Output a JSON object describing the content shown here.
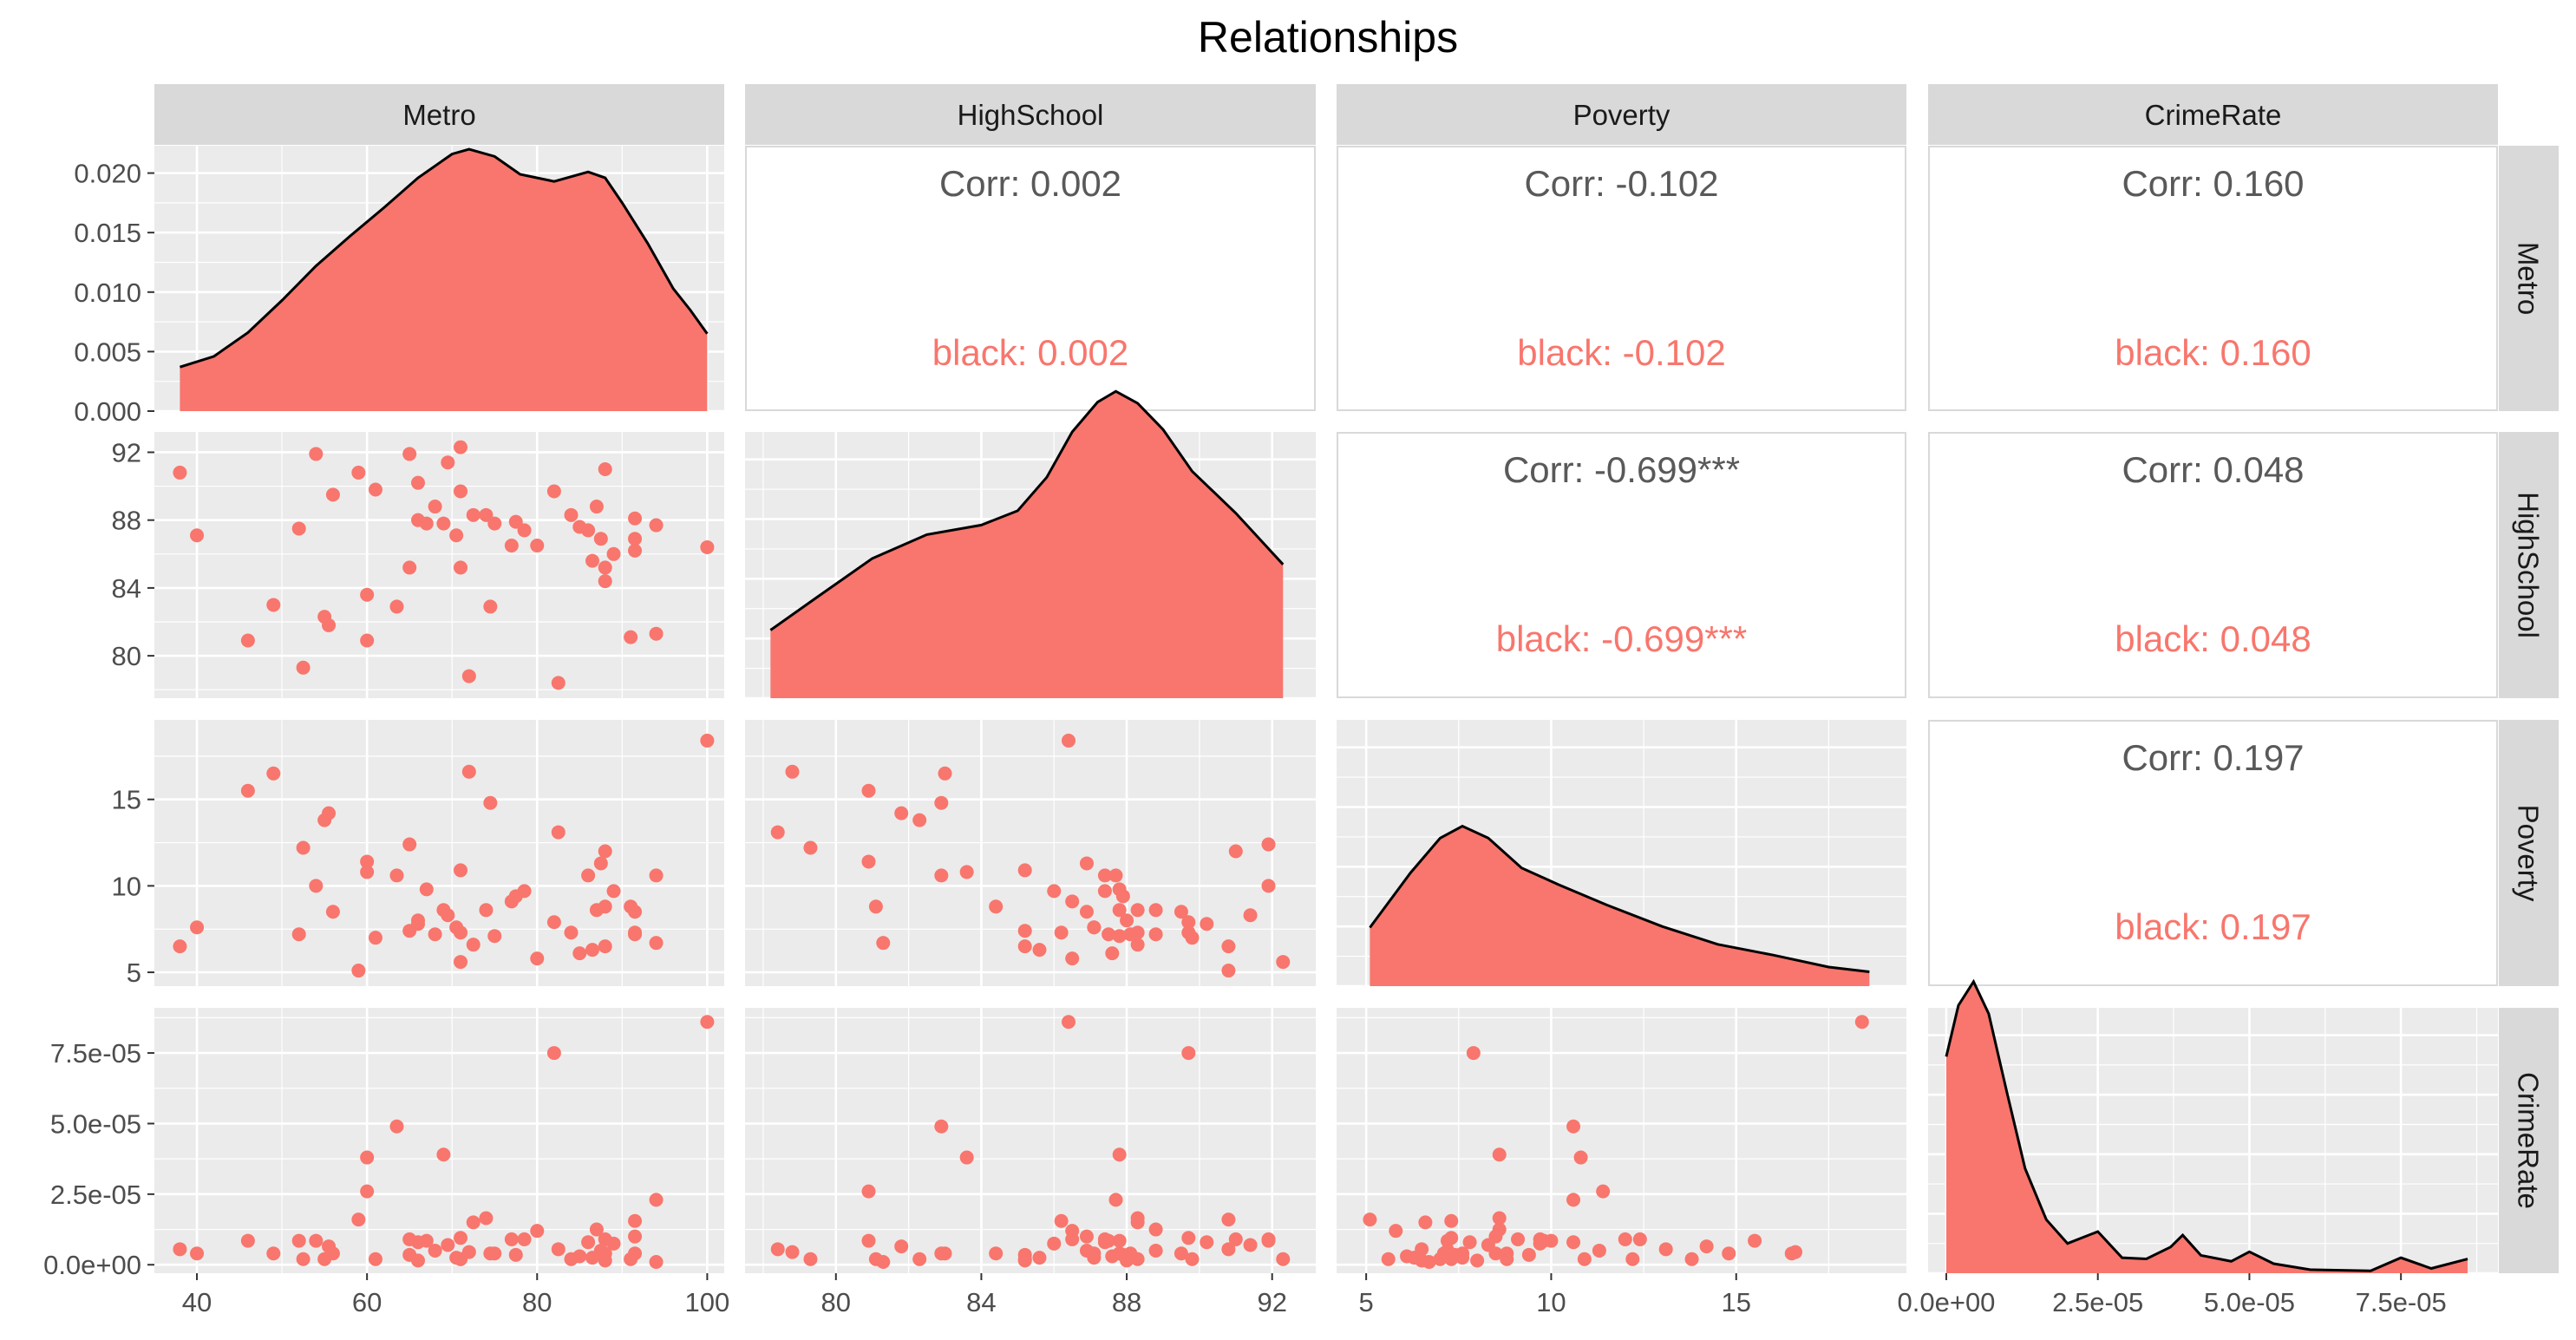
{
  "title": "Relationships",
  "variables": [
    "Metro",
    "HighSchool",
    "Poverty",
    "CrimeRate"
  ],
  "colors": {
    "fill": "#F8766D",
    "panel_bg": "#EBEBEB",
    "strip_bg": "#D9D9D9",
    "grid": "#FFFFFF",
    "corr_text": "#595959",
    "group_text": "#F8766D"
  },
  "chart_data": {
    "type": "scatter",
    "layout": "pairs-matrix",
    "grid": true,
    "ranges": {
      "Metro": [
        35,
        102
      ],
      "HighSchool": [
        77.5,
        93.2
      ],
      "Poverty": [
        4.2,
        19.6
      ],
      "CrimeRate": [
        -3e-06,
        9.1e-05
      ]
    },
    "density_yrange": [
      0,
      0.0223
    ],
    "ticks": {
      "Metro": [
        40,
        60,
        80,
        100
      ],
      "HighSchool": [
        80,
        84,
        88,
        92
      ],
      "Poverty": [
        5,
        10,
        15
      ],
      "CrimeRate": [
        0,
        2.5e-05,
        5e-05,
        7.5e-05
      ]
    },
    "tick_labels": {
      "Metro": [
        "40",
        "60",
        "80",
        "100"
      ],
      "HighSchool": [
        "80",
        "84",
        "88",
        "92"
      ],
      "Poverty": [
        "5",
        "10",
        "15"
      ],
      "CrimeRate": [
        "0.0e+00",
        "2.5e-05",
        "5.0e-05",
        "7.5e-05"
      ]
    },
    "density_ticks": [
      0.0,
      0.005,
      0.01,
      0.015,
      0.02
    ],
    "density_tick_labels": [
      "0.000",
      "0.005",
      "0.010",
      "0.015",
      "0.020"
    ],
    "correlations": [
      {
        "row": "Metro",
        "col": "HighSchool",
        "corr_label": "Corr: 0.002",
        "group_label": "black: 0.002"
      },
      {
        "row": "Metro",
        "col": "Poverty",
        "corr_label": "Corr: -0.102",
        "group_label": "black: -0.102"
      },
      {
        "row": "Metro",
        "col": "CrimeRate",
        "corr_label": "Corr: 0.160",
        "group_label": "black: 0.160"
      },
      {
        "row": "HighSchool",
        "col": "Poverty",
        "corr_label": "Corr: -0.699***",
        "group_label": "black: -0.699***"
      },
      {
        "row": "HighSchool",
        "col": "CrimeRate",
        "corr_label": "Corr: 0.048",
        "group_label": "black: 0.048"
      },
      {
        "row": "Poverty",
        "col": "CrimeRate",
        "corr_label": "Corr: 0.197",
        "group_label": "black: 0.197"
      }
    ],
    "densities": {
      "Metro": [
        [
          38,
          0.0037
        ],
        [
          42,
          0.0046
        ],
        [
          46,
          0.0066
        ],
        [
          50,
          0.0093
        ],
        [
          54,
          0.0122
        ],
        [
          58,
          0.0147
        ],
        [
          62,
          0.0171
        ],
        [
          66,
          0.0196
        ],
        [
          70,
          0.0216
        ],
        [
          72,
          0.022
        ],
        [
          75,
          0.0214
        ],
        [
          78,
          0.0199
        ],
        [
          82,
          0.0193
        ],
        [
          86,
          0.0201
        ],
        [
          88,
          0.0196
        ],
        [
          90,
          0.0175
        ],
        [
          93,
          0.0141
        ],
        [
          96,
          0.0103
        ],
        [
          98,
          0.0085
        ],
        [
          100,
          0.0065
        ]
      ],
      "HighSchool": [
        [
          78.2,
          0.0057
        ],
        [
          79.5,
          0.0085
        ],
        [
          81,
          0.0117
        ],
        [
          82.5,
          0.0137
        ],
        [
          84,
          0.0145
        ],
        [
          85,
          0.0157
        ],
        [
          85.8,
          0.0185
        ],
        [
          86.5,
          0.0223
        ],
        [
          87.2,
          0.0248
        ],
        [
          87.7,
          0.0257
        ],
        [
          88.3,
          0.0247
        ],
        [
          89,
          0.0225
        ],
        [
          89.8,
          0.019
        ],
        [
          91,
          0.0155
        ],
        [
          92.3,
          0.0112
        ]
      ],
      "Poverty": [
        [
          5.1,
          0.0049
        ],
        [
          6.2,
          0.0095
        ],
        [
          7,
          0.0124
        ],
        [
          7.6,
          0.0134
        ],
        [
          8.3,
          0.0124
        ],
        [
          9.2,
          0.0099
        ],
        [
          10.2,
          0.0085
        ],
        [
          11.5,
          0.0068
        ],
        [
          13,
          0.005
        ],
        [
          14.5,
          0.0035
        ],
        [
          16,
          0.0026
        ],
        [
          17.5,
          0.0016
        ],
        [
          18.6,
          0.0012
        ]
      ],
      "CrimeRate": [
        [
          0,
          0.0182
        ],
        [
          2e-06,
          0.0225
        ],
        [
          4.5e-06,
          0.0245
        ],
        [
          7e-06,
          0.0218
        ],
        [
          1e-05,
          0.0152
        ],
        [
          1.3e-05,
          0.0088
        ],
        [
          1.65e-05,
          0.0045
        ],
        [
          2e-05,
          0.0025
        ],
        [
          2.5e-05,
          0.0035
        ],
        [
          2.9e-05,
          0.0013
        ],
        [
          3.3e-05,
          0.0012
        ],
        [
          3.7e-05,
          0.0022
        ],
        [
          3.9e-05,
          0.0032
        ],
        [
          4.2e-05,
          0.0015
        ],
        [
          4.7e-05,
          0.001
        ],
        [
          5e-05,
          0.0018
        ],
        [
          5.4e-05,
          0.0008
        ],
        [
          6e-05,
          0.0003
        ],
        [
          7e-05,
          0.0002
        ],
        [
          7.5e-05,
          0.0013
        ],
        [
          8e-05,
          0.0004
        ],
        [
          8.6e-05,
          0.0012
        ]
      ]
    },
    "points": [
      {
        "Metro": 38,
        "HighSchool": 90.8,
        "Poverty": 6.5,
        "CrimeRate": 5.5e-06
      },
      {
        "Metro": 40,
        "HighSchool": 87.1,
        "Poverty": 7.6,
        "CrimeRate": 4e-06
      },
      {
        "Metro": 46,
        "HighSchool": 80.9,
        "Poverty": 15.5,
        "CrimeRate": 8.5e-06
      },
      {
        "Metro": 49,
        "HighSchool": 83,
        "Poverty": 16.5,
        "CrimeRate": 4e-06
      },
      {
        "Metro": 52,
        "HighSchool": 87.5,
        "Poverty": 7.2,
        "CrimeRate": 8.5e-06
      },
      {
        "Metro": 52.5,
        "HighSchool": 79.3,
        "Poverty": 12.2,
        "CrimeRate": 2e-06
      },
      {
        "Metro": 54,
        "HighSchool": 91.9,
        "Poverty": 10,
        "CrimeRate": 8.5e-06
      },
      {
        "Metro": 55,
        "HighSchool": 82.3,
        "Poverty": 13.8,
        "CrimeRate": 2e-06
      },
      {
        "Metro": 55.5,
        "HighSchool": 81.8,
        "Poverty": 14.2,
        "CrimeRate": 6.5e-06
      },
      {
        "Metro": 56,
        "HighSchool": 89.5,
        "Poverty": 8.5,
        "CrimeRate": 4e-06
      },
      {
        "Metro": 59,
        "HighSchool": 90.8,
        "Poverty": 5.1,
        "CrimeRate": 1.6e-05
      },
      {
        "Metro": 60,
        "HighSchool": 83.6,
        "Poverty": 10.8,
        "CrimeRate": 3.8e-05
      },
      {
        "Metro": 60,
        "HighSchool": 80.9,
        "Poverty": 11.4,
        "CrimeRate": 2.6e-05
      },
      {
        "Metro": 61,
        "HighSchool": 89.8,
        "Poverty": 7,
        "CrimeRate": 2e-06
      },
      {
        "Metro": 63.5,
        "HighSchool": 82.9,
        "Poverty": 10.6,
        "CrimeRate": 4.9e-05
      },
      {
        "Metro": 65,
        "HighSchool": 91.9,
        "Poverty": 12.4,
        "CrimeRate": 9e-06
      },
      {
        "Metro": 65,
        "HighSchool": 85.2,
        "Poverty": 7.4,
        "CrimeRate": 3.5e-06
      },
      {
        "Metro": 66,
        "HighSchool": 90.2,
        "Poverty": 7.8,
        "CrimeRate": 8e-06
      },
      {
        "Metro": 66,
        "HighSchool": 88,
        "Poverty": 8,
        "CrimeRate": 1.5e-06
      },
      {
        "Metro": 67,
        "HighSchool": 87.8,
        "Poverty": 9.8,
        "CrimeRate": 8.5e-06
      },
      {
        "Metro": 68,
        "HighSchool": 88.8,
        "Poverty": 7.2,
        "CrimeRate": 5e-06
      },
      {
        "Metro": 69,
        "HighSchool": 87.8,
        "Poverty": 8.6,
        "CrimeRate": 3.9e-05
      },
      {
        "Metro": 69.5,
        "HighSchool": 91.4,
        "Poverty": 8.3,
        "CrimeRate": 7e-06
      },
      {
        "Metro": 70.5,
        "HighSchool": 87.1,
        "Poverty": 7.6,
        "CrimeRate": 2.5e-06
      },
      {
        "Metro": 71,
        "HighSchool": 92.3,
        "Poverty": 5.6,
        "CrimeRate": 2e-06
      },
      {
        "Metro": 71,
        "HighSchool": 89.7,
        "Poverty": 7.3,
        "CrimeRate": 9.5e-06
      },
      {
        "Metro": 71,
        "HighSchool": 85.2,
        "Poverty": 10.9,
        "CrimeRate": 2e-06
      },
      {
        "Metro": 72,
        "HighSchool": 78.8,
        "Poverty": 16.6,
        "CrimeRate": 4.5e-06
      },
      {
        "Metro": 72.5,
        "HighSchool": 88.3,
        "Poverty": 6.6,
        "CrimeRate": 1.5e-05
      },
      {
        "Metro": 74,
        "HighSchool": 88.3,
        "Poverty": 8.6,
        "CrimeRate": 1.65e-05
      },
      {
        "Metro": 74.5,
        "HighSchool": 82.9,
        "Poverty": 14.8,
        "CrimeRate": 4e-06
      },
      {
        "Metro": 75,
        "HighSchool": 87.8,
        "Poverty": 7.1,
        "CrimeRate": 4e-06
      },
      {
        "Metro": 77,
        "HighSchool": 86.5,
        "Poverty": 9.1,
        "CrimeRate": 9e-06
      },
      {
        "Metro": 77.5,
        "HighSchool": 87.9,
        "Poverty": 9.4,
        "CrimeRate": 3.5e-06
      },
      {
        "Metro": 78.5,
        "HighSchool": 87.4,
        "Poverty": 9.7,
        "CrimeRate": 9e-06
      },
      {
        "Metro": 80,
        "HighSchool": 86.5,
        "Poverty": 5.8,
        "CrimeRate": 1.2e-05
      },
      {
        "Metro": 82,
        "HighSchool": 89.7,
        "Poverty": 7.9,
        "CrimeRate": 7.5e-05
      },
      {
        "Metro": 82.5,
        "HighSchool": 78.4,
        "Poverty": 13.1,
        "CrimeRate": 5.5e-06
      },
      {
        "Metro": 84,
        "HighSchool": 88.3,
        "Poverty": 7.3,
        "CrimeRate": 2e-06
      },
      {
        "Metro": 85,
        "HighSchool": 87.6,
        "Poverty": 6.1,
        "CrimeRate": 3e-06
      },
      {
        "Metro": 86,
        "HighSchool": 87.4,
        "Poverty": 10.6,
        "CrimeRate": 8e-06
      },
      {
        "Metro": 86.5,
        "HighSchool": 85.6,
        "Poverty": 6.3,
        "CrimeRate": 2.5e-06
      },
      {
        "Metro": 87,
        "HighSchool": 88.8,
        "Poverty": 8.6,
        "CrimeRate": 1.25e-05
      },
      {
        "Metro": 87.5,
        "HighSchool": 86.9,
        "Poverty": 11.3,
        "CrimeRate": 5e-06
      },
      {
        "Metro": 88,
        "HighSchool": 85.2,
        "Poverty": 6.5,
        "CrimeRate": 1.5e-06
      },
      {
        "Metro": 88,
        "HighSchool": 84.4,
        "Poverty": 8.8,
        "CrimeRate": 4e-06
      },
      {
        "Metro": 88,
        "HighSchool": 91,
        "Poverty": 12,
        "CrimeRate": 9e-06
      },
      {
        "Metro": 89,
        "HighSchool": 86,
        "Poverty": 9.7,
        "CrimeRate": 7.5e-06
      },
      {
        "Metro": 91,
        "HighSchool": 81.1,
        "Poverty": 8.8,
        "CrimeRate": 2e-06
      },
      {
        "Metro": 91.5,
        "HighSchool": 88.1,
        "Poverty": 7.2,
        "CrimeRate": 4e-06
      },
      {
        "Metro": 91.5,
        "HighSchool": 86.9,
        "Poverty": 8.5,
        "CrimeRate": 1e-05
      },
      {
        "Metro": 91.5,
        "HighSchool": 86.2,
        "Poverty": 7.3,
        "CrimeRate": 1.55e-05
      },
      {
        "Metro": 94,
        "HighSchool": 87.7,
        "Poverty": 10.6,
        "CrimeRate": 2.3e-05
      },
      {
        "Metro": 94,
        "HighSchool": 81.3,
        "Poverty": 6.7,
        "CrimeRate": 1e-06
      },
      {
        "Metro": 100,
        "HighSchool": 86.4,
        "Poverty": 18.4,
        "CrimeRate": 8.6e-05
      }
    ]
  }
}
